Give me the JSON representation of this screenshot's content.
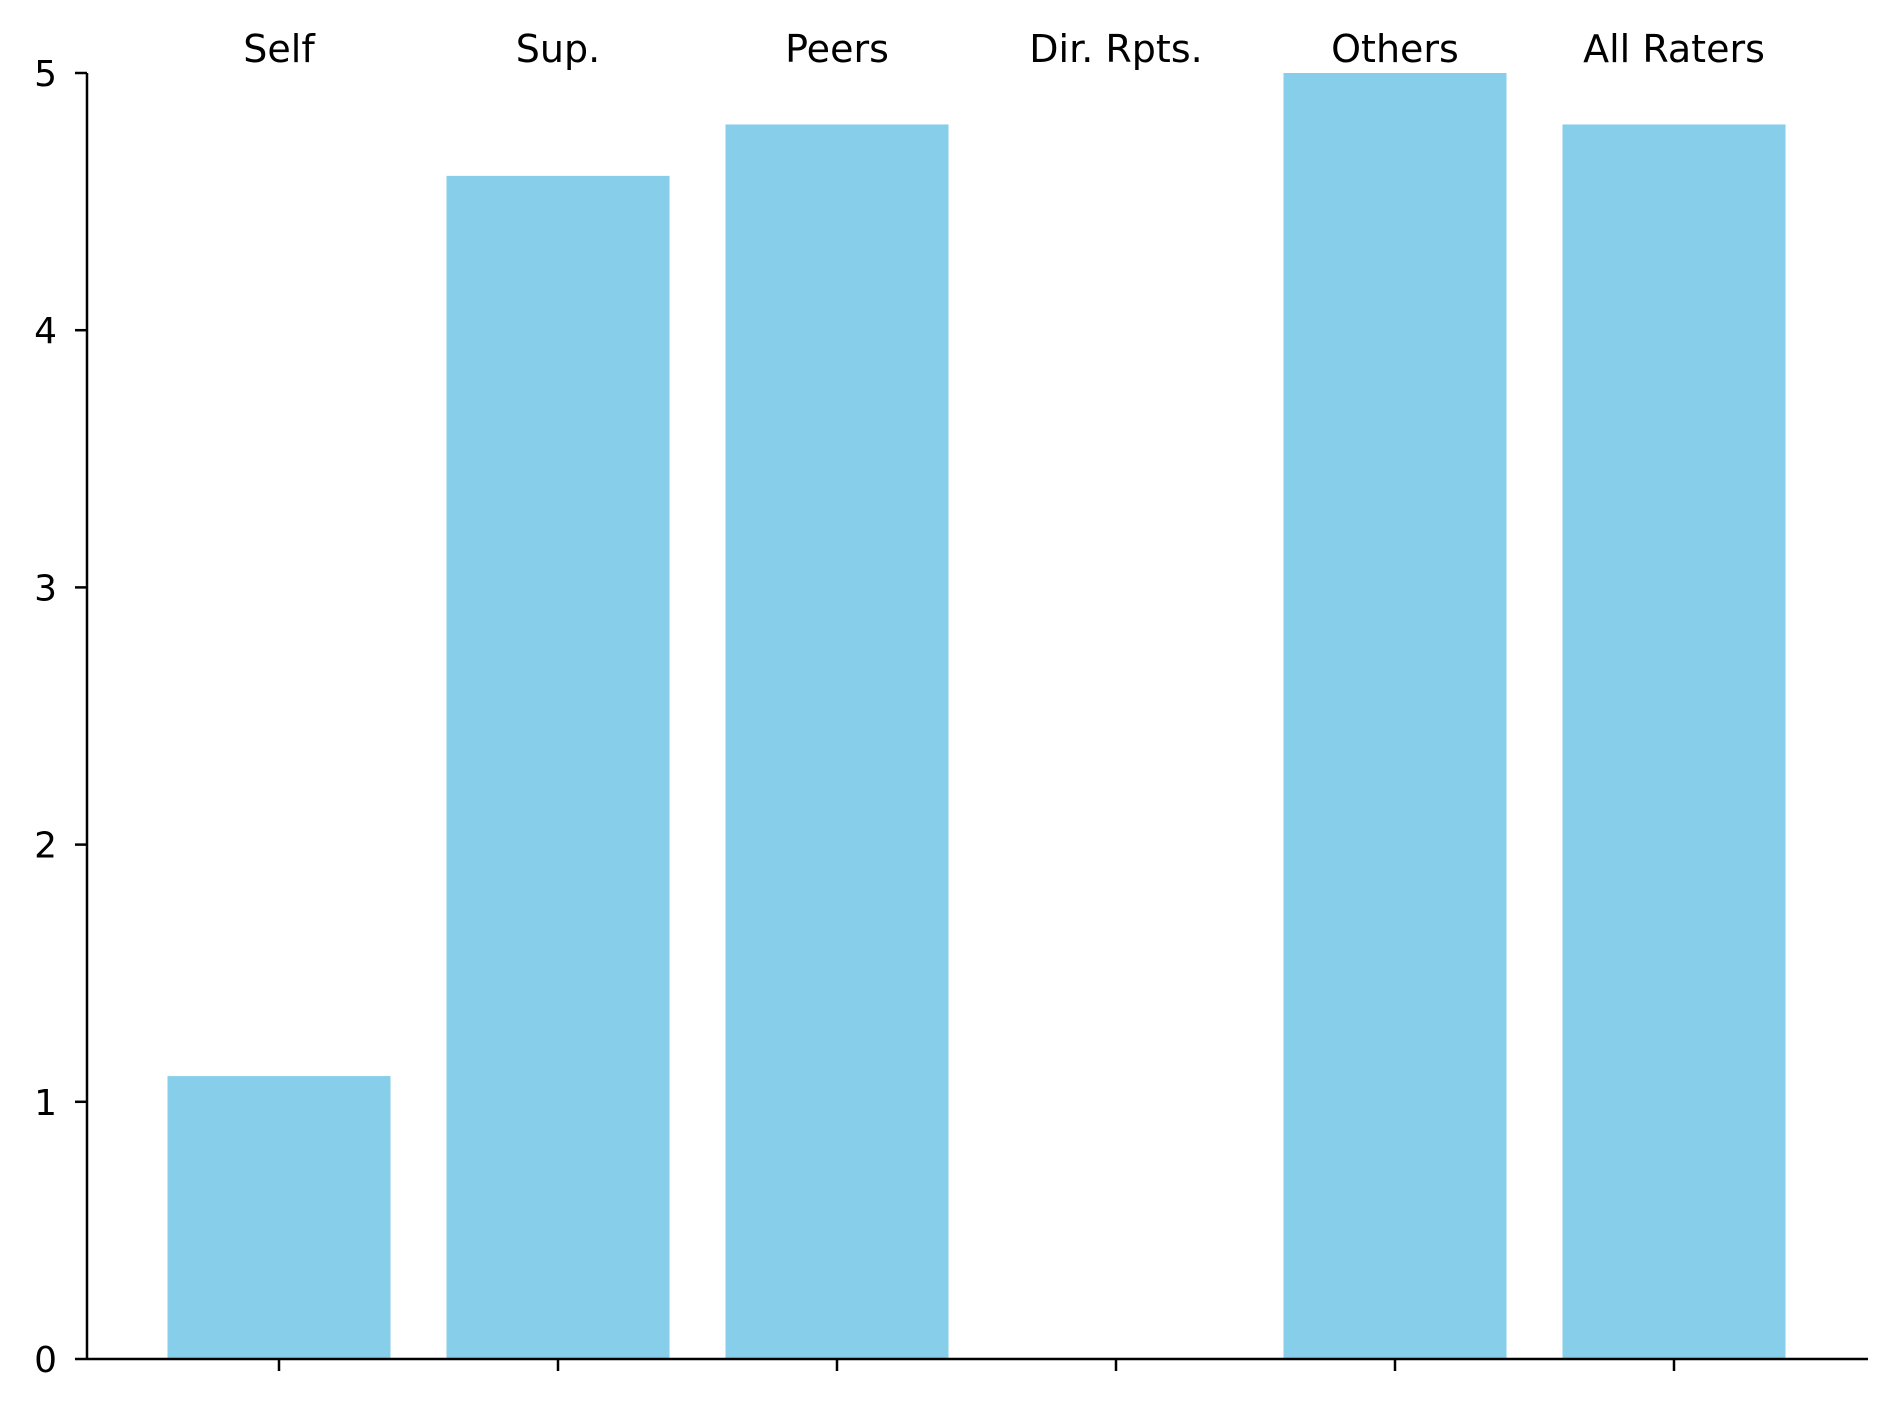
{
  "colors": {
    "bar": "#87CEEB",
    "axis": "#000000",
    "background": "#ffffff"
  },
  "chart_data": {
    "type": "bar",
    "categories": [
      "Self",
      "Sup.",
      "Peers",
      "Dir. Rpts.",
      "Others",
      "All Raters"
    ],
    "values": [
      1.1,
      4.6,
      4.8,
      null,
      5.0,
      4.8
    ],
    "ylim": [
      0,
      5
    ],
    "yticks": [
      0,
      1,
      2,
      3,
      4,
      5
    ],
    "category_label_position": "top",
    "grid": false,
    "legend": "none"
  }
}
